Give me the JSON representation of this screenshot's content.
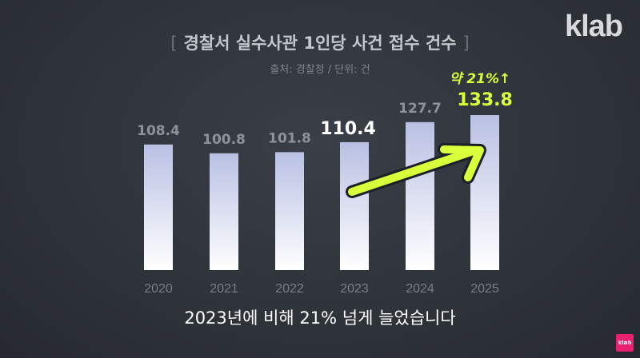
{
  "logo": "klab",
  "badge_text": "klab",
  "chart_data": {
    "type": "bar",
    "title": "경찰서 실수사관 1인당 사건 접수 건수",
    "source": "출처: 경찰청 / 단위: 건",
    "categories": [
      "2020",
      "2021",
      "2022",
      "2023",
      "2024",
      "2025"
    ],
    "values": [
      108.4,
      100.8,
      101.8,
      110.4,
      127.7,
      133.8
    ],
    "value_labels": [
      "108.4",
      "100.8",
      "101.8",
      "110.4",
      "127.7",
      "133.8"
    ],
    "annotation": "약 21%↑",
    "caption": "2023년에 비해 21% 넘게 늘었습니다",
    "colors": {
      "bar_top": "#b9c0e3",
      "bar_bottom": "#ffffff",
      "label_dim": "#8e939b",
      "label_highlight": "#ffffff",
      "accent": "#d8ff3a"
    }
  }
}
